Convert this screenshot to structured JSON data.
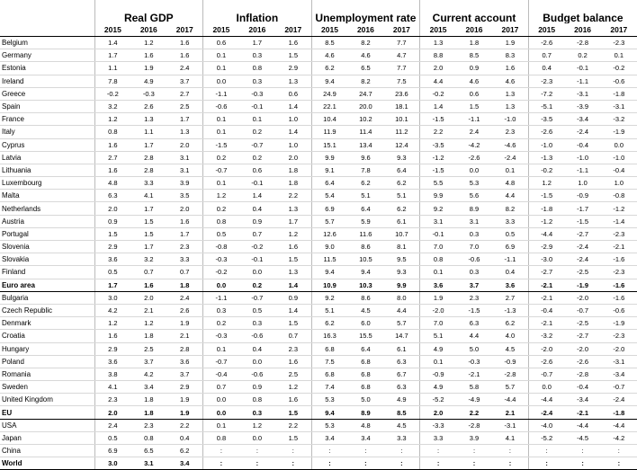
{
  "table": {
    "row_header": "",
    "groups": [
      "Real GDP",
      "Inflation",
      "Unemployment rate",
      "Current account",
      "Budget balance"
    ],
    "years": [
      "2015",
      "2016",
      "2017"
    ],
    "rows": [
      [
        "Belgium",
        "1.4",
        "1.2",
        "1.6",
        "0.6",
        "1.7",
        "1.6",
        "8.5",
        "8.2",
        "7.7",
        "1.3",
        "1.8",
        "1.9",
        "-2.6",
        "-2.8",
        "-2.3"
      ],
      [
        "Germany",
        "1.7",
        "1.6",
        "1.6",
        "0.1",
        "0.3",
        "1.5",
        "4.6",
        "4.6",
        "4.7",
        "8.8",
        "8.5",
        "8.3",
        "0.7",
        "0.2",
        "0.1"
      ],
      [
        "Estonia",
        "1.1",
        "1.9",
        "2.4",
        "0.1",
        "0.8",
        "2.9",
        "6.2",
        "6.5",
        "7.7",
        "2.0",
        "0.9",
        "1.6",
        "0.4",
        "-0.1",
        "-0.2"
      ],
      [
        "Ireland",
        "7.8",
        "4.9",
        "3.7",
        "0.0",
        "0.3",
        "1.3",
        "9.4",
        "8.2",
        "7.5",
        "4.4",
        "4.6",
        "4.6",
        "-2.3",
        "-1.1",
        "-0.6"
      ],
      [
        "Greece",
        "-0.2",
        "-0.3",
        "2.7",
        "-1.1",
        "-0.3",
        "0.6",
        "24.9",
        "24.7",
        "23.6",
        "-0.2",
        "0.6",
        "1.3",
        "-7.2",
        "-3.1",
        "-1.8"
      ],
      [
        "Spain",
        "3.2",
        "2.6",
        "2.5",
        "-0.6",
        "-0.1",
        "1.4",
        "22.1",
        "20.0",
        "18.1",
        "1.4",
        "1.5",
        "1.3",
        "-5.1",
        "-3.9",
        "-3.1"
      ],
      [
        "France",
        "1.2",
        "1.3",
        "1.7",
        "0.1",
        "0.1",
        "1.0",
        "10.4",
        "10.2",
        "10.1",
        "-1.5",
        "-1.1",
        "-1.0",
        "-3.5",
        "-3.4",
        "-3.2"
      ],
      [
        "Italy",
        "0.8",
        "1.1",
        "1.3",
        "0.1",
        "0.2",
        "1.4",
        "11.9",
        "11.4",
        "11.2",
        "2.2",
        "2.4",
        "2.3",
        "-2.6",
        "-2.4",
        "-1.9"
      ],
      [
        "Cyprus",
        "1.6",
        "1.7",
        "2.0",
        "-1.5",
        "-0.7",
        "1.0",
        "15.1",
        "13.4",
        "12.4",
        "-3.5",
        "-4.2",
        "-4.6",
        "-1.0",
        "-0.4",
        "0.0"
      ],
      [
        "Latvia",
        "2.7",
        "2.8",
        "3.1",
        "0.2",
        "0.2",
        "2.0",
        "9.9",
        "9.6",
        "9.3",
        "-1.2",
        "-2.6",
        "-2.4",
        "-1.3",
        "-1.0",
        "-1.0"
      ],
      [
        "Lithuania",
        "1.6",
        "2.8",
        "3.1",
        "-0.7",
        "0.6",
        "1.8",
        "9.1",
        "7.8",
        "6.4",
        "-1.5",
        "0.0",
        "0.1",
        "-0.2",
        "-1.1",
        "-0.4"
      ],
      [
        "Luxembourg",
        "4.8",
        "3.3",
        "3.9",
        "0.1",
        "-0.1",
        "1.8",
        "6.4",
        "6.2",
        "6.2",
        "5.5",
        "5.3",
        "4.8",
        "1.2",
        "1.0",
        "1.0"
      ],
      [
        "Malta",
        "6.3",
        "4.1",
        "3.5",
        "1.2",
        "1.4",
        "2.2",
        "5.4",
        "5.1",
        "5.1",
        "9.9",
        "5.6",
        "4.4",
        "-1.5",
        "-0.9",
        "-0.8"
      ],
      [
        "Netherlands",
        "2.0",
        "1.7",
        "2.0",
        "0.2",
        "0.4",
        "1.3",
        "6.9",
        "6.4",
        "6.2",
        "9.2",
        "8.9",
        "8.2",
        "-1.8",
        "-1.7",
        "-1.2"
      ],
      [
        "Austria",
        "0.9",
        "1.5",
        "1.6",
        "0.8",
        "0.9",
        "1.7",
        "5.7",
        "5.9",
        "6.1",
        "3.1",
        "3.1",
        "3.3",
        "-1.2",
        "-1.5",
        "-1.4"
      ],
      [
        "Portugal",
        "1.5",
        "1.5",
        "1.7",
        "0.5",
        "0.7",
        "1.2",
        "12.6",
        "11.6",
        "10.7",
        "-0.1",
        "0.3",
        "0.5",
        "-4.4",
        "-2.7",
        "-2.3"
      ],
      [
        "Slovenia",
        "2.9",
        "1.7",
        "2.3",
        "-0.8",
        "-0.2",
        "1.6",
        "9.0",
        "8.6",
        "8.1",
        "7.0",
        "7.0",
        "6.9",
        "-2.9",
        "-2.4",
        "-2.1"
      ],
      [
        "Slovakia",
        "3.6",
        "3.2",
        "3.3",
        "-0.3",
        "-0.1",
        "1.5",
        "11.5",
        "10.5",
        "9.5",
        "0.8",
        "-0.6",
        "-1.1",
        "-3.0",
        "-2.4",
        "-1.6"
      ],
      [
        "Finland",
        "0.5",
        "0.7",
        "0.7",
        "-0.2",
        "0.0",
        "1.3",
        "9.4",
        "9.4",
        "9.3",
        "0.1",
        "0.3",
        "0.4",
        "-2.7",
        "-2.5",
        "-2.3"
      ],
      [
        "Euro area",
        "1.7",
        "1.6",
        "1.8",
        "0.0",
        "0.2",
        "1.4",
        "10.9",
        "10.3",
        "9.9",
        "3.6",
        "3.7",
        "3.6",
        "-2.1",
        "-1.9",
        "-1.6"
      ],
      [
        "Bulgaria",
        "3.0",
        "2.0",
        "2.4",
        "-1.1",
        "-0.7",
        "0.9",
        "9.2",
        "8.6",
        "8.0",
        "1.9",
        "2.3",
        "2.7",
        "-2.1",
        "-2.0",
        "-1.6"
      ],
      [
        "Czech Republic",
        "4.2",
        "2.1",
        "2.6",
        "0.3",
        "0.5",
        "1.4",
        "5.1",
        "4.5",
        "4.4",
        "-2.0",
        "-1.5",
        "-1.3",
        "-0.4",
        "-0.7",
        "-0.6"
      ],
      [
        "Denmark",
        "1.2",
        "1.2",
        "1.9",
        "0.2",
        "0.3",
        "1.5",
        "6.2",
        "6.0",
        "5.7",
        "7.0",
        "6.3",
        "6.2",
        "-2.1",
        "-2.5",
        "-1.9"
      ],
      [
        "Croatia",
        "1.6",
        "1.8",
        "2.1",
        "-0.3",
        "-0.6",
        "0.7",
        "16.3",
        "15.5",
        "14.7",
        "5.1",
        "4.4",
        "4.0",
        "-3.2",
        "-2.7",
        "-2.3"
      ],
      [
        "Hungary",
        "2.9",
        "2.5",
        "2.8",
        "0.1",
        "0.4",
        "2.3",
        "6.8",
        "6.4",
        "6.1",
        "4.9",
        "5.0",
        "4.5",
        "-2.0",
        "-2.0",
        "-2.0"
      ],
      [
        "Poland",
        "3.6",
        "3.7",
        "3.6",
        "-0.7",
        "0.0",
        "1.6",
        "7.5",
        "6.8",
        "6.3",
        "0.1",
        "-0.3",
        "-0.9",
        "-2.6",
        "-2.6",
        "-3.1"
      ],
      [
        "Romania",
        "3.8",
        "4.2",
        "3.7",
        "-0.4",
        "-0.6",
        "2.5",
        "6.8",
        "6.8",
        "6.7",
        "-0.9",
        "-2.1",
        "-2.8",
        "-0.7",
        "-2.8",
        "-3.4"
      ],
      [
        "Sweden",
        "4.1",
        "3.4",
        "2.9",
        "0.7",
        "0.9",
        "1.2",
        "7.4",
        "6.8",
        "6.3",
        "4.9",
        "5.8",
        "5.7",
        "0.0",
        "-0.4",
        "-0.7"
      ],
      [
        "United Kingdom",
        "2.3",
        "1.8",
        "1.9",
        "0.0",
        "0.8",
        "1.6",
        "5.3",
        "5.0",
        "4.9",
        "-5.2",
        "-4.9",
        "-4.4",
        "-4.4",
        "-3.4",
        "-2.4"
      ],
      [
        "EU",
        "2.0",
        "1.8",
        "1.9",
        "0.0",
        "0.3",
        "1.5",
        "9.4",
        "8.9",
        "8.5",
        "2.0",
        "2.2",
        "2.1",
        "-2.4",
        "-2.1",
        "-1.8"
      ],
      [
        "USA",
        "2.4",
        "2.3",
        "2.2",
        "0.1",
        "1.2",
        "2.2",
        "5.3",
        "4.8",
        "4.5",
        "-3.3",
        "-2.8",
        "-3.1",
        "-4.0",
        "-4.4",
        "-4.4"
      ],
      [
        "Japan",
        "0.5",
        "0.8",
        "0.4",
        "0.8",
        "0.0",
        "1.5",
        "3.4",
        "3.4",
        "3.3",
        "3.3",
        "3.9",
        "4.1",
        "-5.2",
        "-4.5",
        "-4.2"
      ],
      [
        "China",
        "6.9",
        "6.5",
        "6.2",
        ":",
        ":",
        ":",
        ":",
        ":",
        ":",
        ":",
        ":",
        ":",
        ":",
        ":",
        ":"
      ],
      [
        "World",
        "3.0",
        "3.1",
        "3.4",
        ":",
        ":",
        ":",
        ":",
        ":",
        ":",
        ":",
        ":",
        ":",
        ":",
        ":",
        ":"
      ]
    ]
  }
}
